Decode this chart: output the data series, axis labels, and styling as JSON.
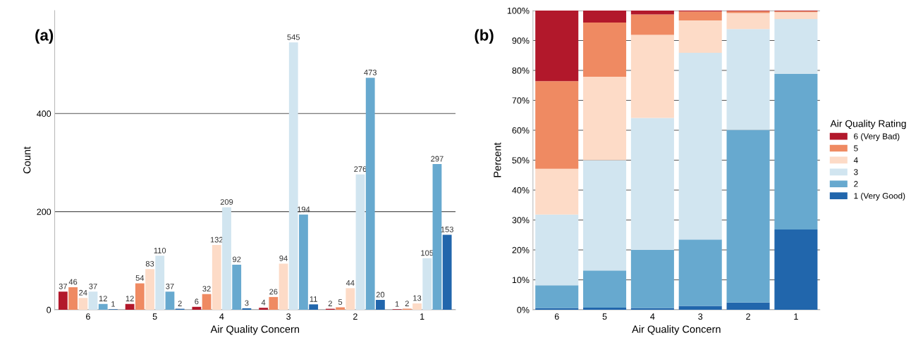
{
  "chart_data": [
    {
      "type": "bar",
      "title": "(a)",
      "xlabel": "Air Quality Concern",
      "ylabel": "Count",
      "categories": [
        "6",
        "5",
        "4",
        "3",
        "2",
        "1"
      ],
      "ylim": [
        0,
        610
      ],
      "yticks": [
        0,
        200,
        400
      ],
      "grid": "y",
      "data_labels": true,
      "legend": false,
      "series": [
        {
          "color": "#b2182b",
          "values": [
            37,
            12,
            6,
            4,
            2,
            1
          ]
        },
        {
          "color": "#ef8a62",
          "values": [
            46,
            54,
            32,
            26,
            5,
            2
          ]
        },
        {
          "color": "#fddbc7",
          "values": [
            24,
            83,
            132,
            94,
            44,
            13
          ]
        },
        {
          "color": "#d1e5f0",
          "values": [
            37,
            110,
            209,
            545,
            276,
            105
          ]
        },
        {
          "color": "#67a9cf",
          "values": [
            12,
            37,
            92,
            194,
            473,
            297
          ]
        },
        {
          "color": "#2166ac",
          "values": [
            1,
            2,
            3,
            11,
            20,
            153
          ]
        }
      ]
    },
    {
      "type": "bar",
      "title": "(b)",
      "xlabel": "Air Quality Concern",
      "ylabel": "Percent",
      "legend_title": "Air Quality Rating",
      "categories": [
        "6",
        "5",
        "4",
        "3",
        "2",
        "1"
      ],
      "stacked": true,
      "ylim": [
        0,
        100
      ],
      "yticks": [
        {
          "value": 0,
          "label": "0%"
        },
        {
          "value": 10,
          "label": "10%"
        },
        {
          "value": 20,
          "label": "20%"
        },
        {
          "value": 30,
          "label": "30%"
        },
        {
          "value": 40,
          "label": "40%"
        },
        {
          "value": 50,
          "label": "50%"
        },
        {
          "value": 60,
          "label": "60%"
        },
        {
          "value": 70,
          "label": "70%"
        },
        {
          "value": 80,
          "label": "80%"
        },
        {
          "value": 90,
          "label": "90%"
        },
        {
          "value": 100,
          "label": "100%"
        }
      ],
      "grid": "y",
      "legend": "right",
      "series": [
        {
          "name": "1 (Very Good)",
          "color": "#2166ac",
          "values": [
            0.6,
            0.7,
            0.6,
            1.3,
            2.4,
            26.8
          ]
        },
        {
          "name": "2",
          "color": "#67a9cf",
          "values": [
            7.6,
            12.4,
            19.4,
            22.2,
            57.7,
            52.0
          ]
        },
        {
          "name": "3",
          "color": "#d1e5f0",
          "values": [
            23.6,
            36.9,
            44.1,
            62.4,
            33.7,
            18.4
          ]
        },
        {
          "name": "4",
          "color": "#fddbc7",
          "values": [
            15.3,
            27.9,
            27.8,
            10.8,
            5.4,
            2.3
          ]
        },
        {
          "name": "5",
          "color": "#ef8a62",
          "values": [
            29.3,
            18.1,
            6.8,
            3.0,
            0.6,
            0.3
          ]
        },
        {
          "name": "6 (Very Bad)",
          "color": "#b2182b",
          "values": [
            23.6,
            4.0,
            1.3,
            0.3,
            0.2,
            0.2
          ]
        }
      ]
    }
  ]
}
